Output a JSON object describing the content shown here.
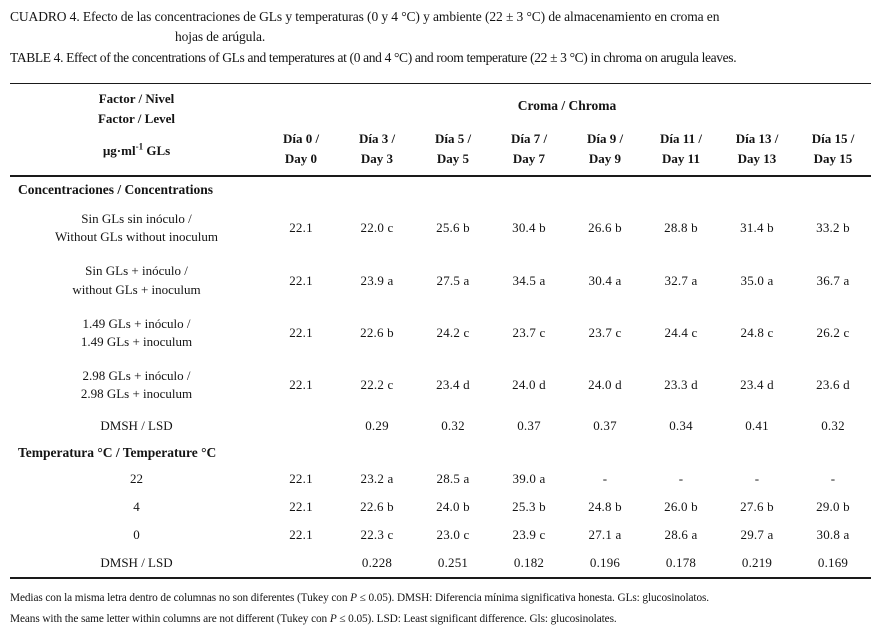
{
  "title": {
    "es_line1": "CUADRO 4. Efecto de las concentraciones de GLs y temperaturas (0 y 4 °C) y ambiente (22 ± 3 °C) de almacenamiento en croma en",
    "es_line2": "hojas de arúgula.",
    "en": "TABLE 4. Effect of the concentrations of GLs and temperatures at (0 and 4 °C) and room temperature (22 ± 3 °C) in chroma on arugula leaves."
  },
  "table": {
    "header": {
      "factor_line1": "Factor / Nivel",
      "factor_line2": "Factor / Level",
      "unit_prefix": "µg·ml",
      "unit_sup": "-1",
      "unit_suffix": " GLs",
      "group": "Croma / Chroma",
      "days": [
        {
          "l1": "Día 0 /",
          "l2": "Day 0"
        },
        {
          "l1": "Día 3 /",
          "l2": "Day 3"
        },
        {
          "l1": "Día 5 /",
          "l2": "Day 5"
        },
        {
          "l1": "Día 7 /",
          "l2": "Day 7"
        },
        {
          "l1": "Día 9 /",
          "l2": "Day 9"
        },
        {
          "l1": "Día 11 /",
          "l2": "Day 11"
        },
        {
          "l1": "Día 13 /",
          "l2": "Day 13"
        },
        {
          "l1": "Día 15 /",
          "l2": "Day 15"
        }
      ]
    },
    "sections": [
      {
        "heading": "Concentraciones / Concentrations",
        "rows": [
          {
            "label1": "Sin GLs sin inóculo /",
            "label2": "Without GLs without inoculum",
            "values": [
              "22.1",
              "22.0 c",
              "25.6 b",
              "30.4 b",
              "26.6 b",
              "28.8 b",
              "31.4 b",
              "33.2 b"
            ]
          },
          {
            "label1": "Sin GLs + inóculo /",
            "label2": "without GLs + inoculum",
            "values": [
              "22.1",
              "23.9 a",
              "27.5 a",
              "34.5 a",
              "30.4 a",
              "32.7 a",
              "35.0 a",
              "36.7 a"
            ]
          },
          {
            "label1": "1.49 GLs + inóculo /",
            "label2": "1.49 GLs + inoculum",
            "values": [
              "22.1",
              "22.6 b",
              "24.2 c",
              "23.7 c",
              "23.7 c",
              "24.4 c",
              "24.8 c",
              "26.2 c"
            ]
          },
          {
            "label1": "2.98 GLs + inóculo /",
            "label2": "2.98 GLs + inoculum",
            "values": [
              "22.1",
              "22.2 c",
              "23.4 d",
              "24.0 d",
              "24.0 d",
              "23.3 d",
              "23.4 d",
              "23.6 d"
            ]
          },
          {
            "label1": "DMSH / LSD",
            "values": [
              "",
              "0.29",
              "0.32",
              "0.37",
              "0.37",
              "0.34",
              "0.41",
              "0.32"
            ]
          }
        ]
      },
      {
        "heading": "Temperatura °C / Temperature °C",
        "rows": [
          {
            "label1": "22",
            "values": [
              "22.1",
              "23.2 a",
              "28.5 a",
              "39.0 a",
              "-",
              "-",
              "-",
              "-"
            ]
          },
          {
            "label1": "4",
            "values": [
              "22.1",
              "22.6 b",
              "24.0 b",
              "25.3 b",
              "24.8 b",
              "26.0 b",
              "27.6 b",
              "29.0 b"
            ]
          },
          {
            "label1": "0",
            "values": [
              "22.1",
              "22.3 c",
              "23.0 c",
              "23.9 c",
              "27.1 a",
              "28.6 a",
              "29.7 a",
              "30.8 a"
            ]
          },
          {
            "label1": "DMSH / LSD",
            "values": [
              "",
              "0.228",
              "0.251",
              "0.182",
              "0.196",
              "0.178",
              "0.219",
              "0.169"
            ]
          }
        ]
      }
    ]
  },
  "footnotes": [
    {
      "before": "Medias con la misma letra dentro de columnas no son diferentes (Tukey con ",
      "p": "P",
      "after": " ≤ 0.05). DMSH: Diferencia mínima significativa honesta. GLs: glucosinolatos."
    },
    {
      "before": "Means with the same letter within columns are not different (Tukey con ",
      "p": "P",
      "after": " ≤ 0.05). LSD: Least significant difference. Gls: glucosinolates."
    }
  ]
}
